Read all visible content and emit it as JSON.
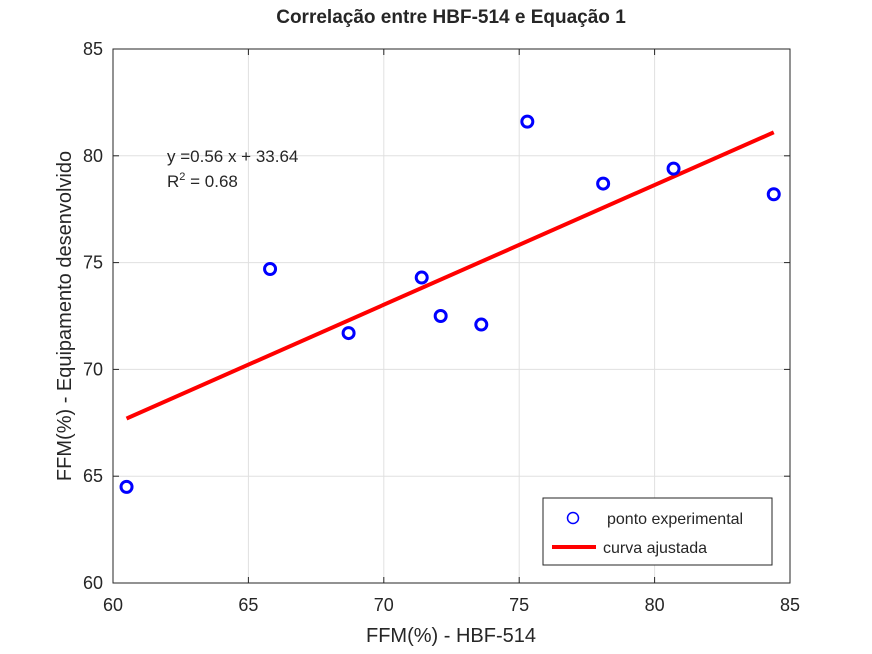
{
  "chart_data": {
    "type": "scatter",
    "title": "Correlação entre HBF-514 e Equação 1",
    "xlabel": "FFM(%) - HBF-514",
    "ylabel": "FFM(%) - Equipamento desenvolvido",
    "xlim": [
      60,
      85
    ],
    "ylim": [
      60,
      85
    ],
    "xticks": [
      "60",
      "65",
      "70",
      "75",
      "80",
      "85"
    ],
    "yticks": [
      "60",
      "65",
      "70",
      "75",
      "80",
      "85"
    ],
    "grid": true,
    "legend_position": "bottom-right",
    "annotation": {
      "equation": "y =0.56 x + 33.64",
      "r2_base": "R",
      "r2_sup": "2",
      "r2_value": " = 0.68"
    },
    "series": [
      {
        "name": "ponto experimental",
        "kind": "scatter",
        "color": "#0000ff",
        "points": [
          {
            "x": 60.5,
            "y": 64.5
          },
          {
            "x": 65.8,
            "y": 74.7
          },
          {
            "x": 68.7,
            "y": 71.7
          },
          {
            "x": 71.4,
            "y": 74.3
          },
          {
            "x": 72.1,
            "y": 72.5
          },
          {
            "x": 73.6,
            "y": 72.1
          },
          {
            "x": 75.3,
            "y": 81.6
          },
          {
            "x": 78.1,
            "y": 78.7
          },
          {
            "x": 80.7,
            "y": 79.4
          },
          {
            "x": 84.4,
            "y": 78.2
          }
        ]
      },
      {
        "name": "curva ajustada",
        "kind": "line",
        "color": "#ff0000",
        "points": [
          {
            "x": 60.5,
            "y": 67.7
          },
          {
            "x": 84.4,
            "y": 81.1
          }
        ]
      }
    ]
  }
}
